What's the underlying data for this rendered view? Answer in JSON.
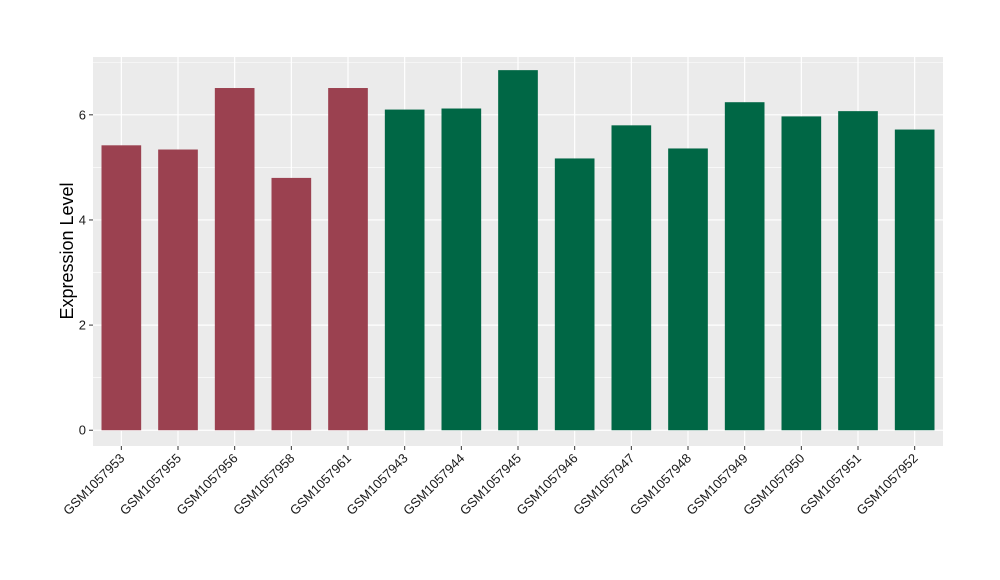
{
  "chart_data": {
    "type": "bar",
    "title": "",
    "xlabel": "",
    "ylabel": "Expression Level",
    "ylim": [
      -0.3,
      7.1
    ],
    "yticks": [
      0,
      2,
      4,
      6
    ],
    "grid": true,
    "legend": "none",
    "categories": [
      "GSM1057953",
      "GSM1057955",
      "GSM1057956",
      "GSM1057958",
      "GSM1057961",
      "GSM1057943",
      "GSM1057944",
      "GSM1057945",
      "GSM1057946",
      "GSM1057947",
      "GSM1057948",
      "GSM1057949",
      "GSM1057950",
      "GSM1057951",
      "GSM1057952"
    ],
    "values": [
      5.42,
      5.34,
      6.51,
      4.8,
      6.51,
      6.1,
      6.12,
      6.85,
      5.17,
      5.8,
      5.36,
      6.24,
      5.97,
      6.07,
      5.72
    ],
    "bar_colors": [
      "#9b4150",
      "#9b4150",
      "#9b4150",
      "#9b4150",
      "#9b4150",
      "#006745",
      "#006745",
      "#006745",
      "#006745",
      "#006745",
      "#006745",
      "#006745",
      "#006745",
      "#006745",
      "#006745"
    ],
    "panel_background": "#ebebeb",
    "grid_color": "#ffffff"
  }
}
